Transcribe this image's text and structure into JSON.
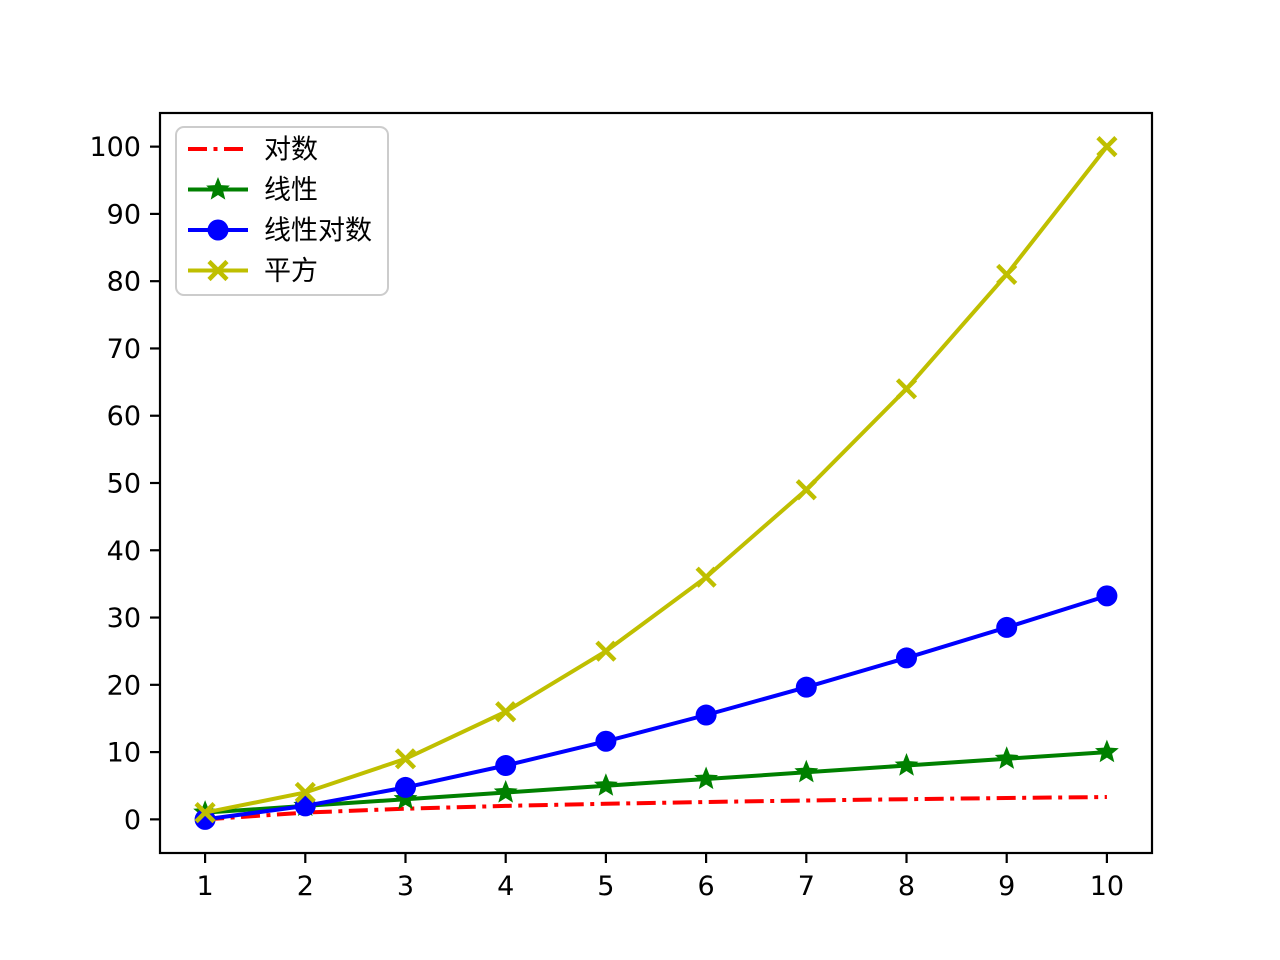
{
  "chart_data": {
    "type": "line",
    "title": "",
    "xlabel": "",
    "ylabel": "",
    "grid": false,
    "legend_position": "upper-left",
    "x": [
      1,
      2,
      3,
      4,
      5,
      6,
      7,
      8,
      9,
      10
    ],
    "series": [
      {
        "name": "对数",
        "color": "#ff0000",
        "linestyle": "dashdot",
        "marker": "none",
        "values": [
          0.0,
          1.0,
          1.58,
          2.0,
          2.32,
          2.58,
          2.81,
          3.0,
          3.17,
          3.32
        ]
      },
      {
        "name": "线性",
        "color": "#008000",
        "linestyle": "solid",
        "marker": "star",
        "values": [
          1,
          2,
          3,
          4,
          5,
          6,
          7,
          8,
          9,
          10
        ]
      },
      {
        "name": "线性对数",
        "color": "#0000ff",
        "linestyle": "solid",
        "marker": "circle",
        "values": [
          0.0,
          2.0,
          4.75,
          8.0,
          11.61,
          15.51,
          19.65,
          24.0,
          28.53,
          33.22
        ]
      },
      {
        "name": "平方",
        "color": "#bfbf00",
        "linestyle": "solid",
        "marker": "x",
        "values": [
          1,
          4,
          9,
          16,
          25,
          36,
          49,
          64,
          81,
          100
        ]
      }
    ],
    "xticks": [
      1,
      2,
      3,
      4,
      5,
      6,
      7,
      8,
      9,
      10
    ],
    "yticks": [
      0,
      10,
      20,
      30,
      40,
      50,
      60,
      70,
      80,
      90,
      100
    ],
    "xlim": [
      0.55,
      10.45
    ],
    "ylim": [
      -5,
      105
    ],
    "axis_color": "#000000",
    "legend_border_color": "#cccccc",
    "background_color": "#ffffff"
  }
}
